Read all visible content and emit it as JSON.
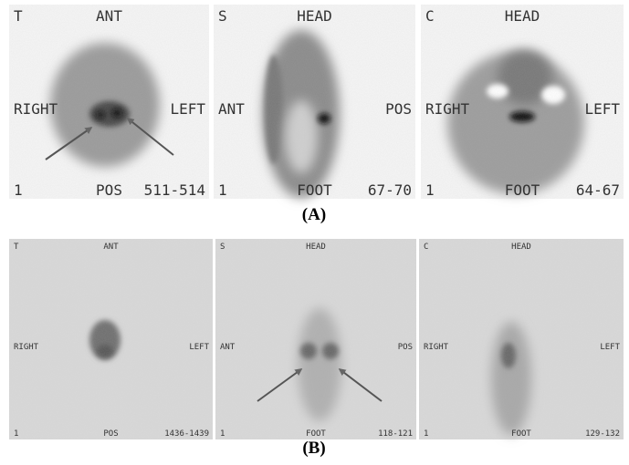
{
  "panels": [
    {
      "label": "(A)",
      "views": [
        {
          "corner": "T",
          "top": "ANT",
          "left": "RIGHT",
          "right": "LEFT",
          "bottom_left": "1",
          "bottom": "POS",
          "bottom_right": "511-514"
        },
        {
          "corner": "S",
          "top": "HEAD",
          "left": "ANT",
          "right": "POS",
          "bottom_left": "1",
          "bottom": "FOOT",
          "bottom_right": "67-70"
        },
        {
          "corner": "C",
          "top": "HEAD",
          "left": "RIGHT",
          "right": "LEFT",
          "bottom_left": "1",
          "bottom": "FOOT",
          "bottom_right": "64-67"
        }
      ]
    },
    {
      "label": "(B)",
      "views": [
        {
          "corner": "T",
          "top": "ANT",
          "left": "RIGHT",
          "right": "LEFT",
          "bottom_left": "1",
          "bottom": "POS",
          "bottom_right": "1436-1439"
        },
        {
          "corner": "S",
          "top": "HEAD",
          "left": "ANT",
          "right": "POS",
          "bottom_left": "1",
          "bottom": "FOOT",
          "bottom_right": "118-121"
        },
        {
          "corner": "C",
          "top": "HEAD",
          "left": "RIGHT",
          "right": "LEFT",
          "bottom_left": "1",
          "bottom": "FOOT",
          "bottom_right": "129-132"
        }
      ]
    }
  ]
}
